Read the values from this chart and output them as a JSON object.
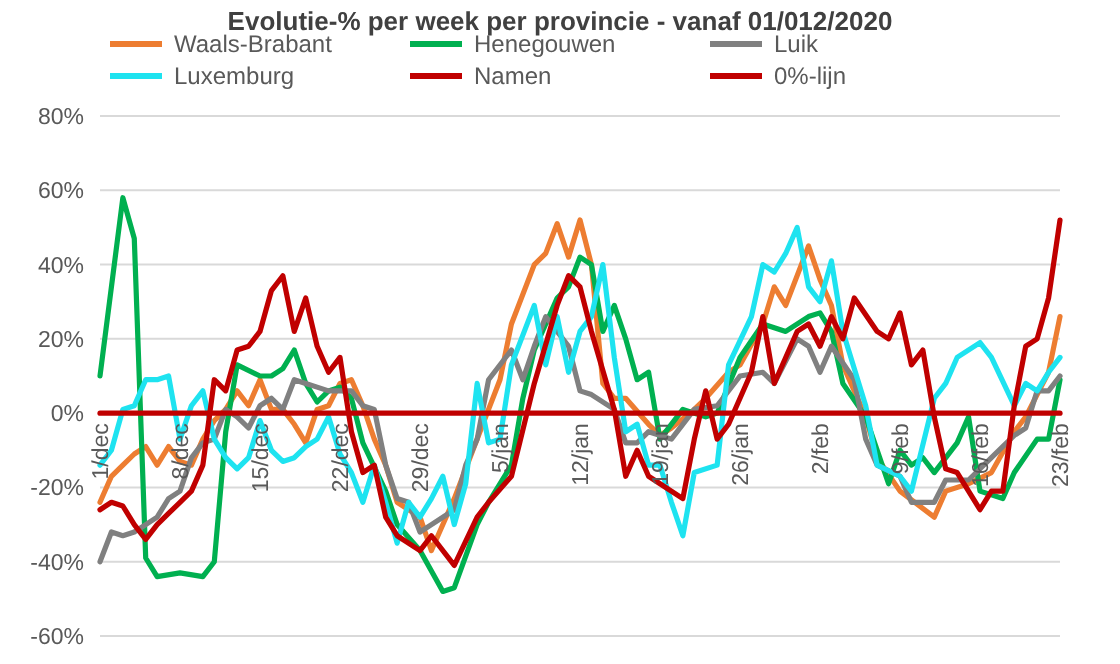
{
  "chart_data": {
    "type": "line",
    "title": "Evolutie-% per week per provincie - vanaf 01/012/2020",
    "xlim": [
      "2020-12-01",
      "2021-02-23"
    ],
    "xticks": [
      {
        "value": "2020-12-01",
        "label": "1/dec"
      },
      {
        "value": "2020-12-08",
        "label": "8/dec"
      },
      {
        "value": "2020-12-15",
        "label": "15/dec"
      },
      {
        "value": "2020-12-22",
        "label": "22/dec"
      },
      {
        "value": "2020-12-29",
        "label": "29/dec"
      },
      {
        "value": "2021-01-05",
        "label": "5/jan"
      },
      {
        "value": "2021-01-12",
        "label": "12/jan"
      },
      {
        "value": "2021-01-19",
        "label": "19/jan"
      },
      {
        "value": "2021-01-26",
        "label": "26/jan"
      },
      {
        "value": "2021-02-02",
        "label": "2/feb"
      },
      {
        "value": "2021-02-09",
        "label": "9/feb"
      },
      {
        "value": "2021-02-16",
        "label": "16/feb"
      },
      {
        "value": "2021-02-23",
        "label": "23/feb"
      }
    ],
    "ylim": [
      -60,
      80
    ],
    "yticks": [
      {
        "value": -60,
        "label": "-60%"
      },
      {
        "value": -40,
        "label": "-40%"
      },
      {
        "value": -20,
        "label": "-20%"
      },
      {
        "value": 0,
        "label": "0%"
      },
      {
        "value": 20,
        "label": "20%"
      },
      {
        "value": 40,
        "label": "40%"
      },
      {
        "value": 60,
        "label": "60%"
      },
      {
        "value": 80,
        "label": "80%"
      }
    ],
    "grid": "y",
    "legend": "top",
    "marker": "none",
    "line_style": "solid",
    "series": [
      {
        "name": "Waals-Brabant",
        "color": "#ed7d31",
        "x": [
          "2020-12-01",
          "2020-12-02",
          "2020-12-03",
          "2020-12-04",
          "2020-12-05",
          "2020-12-06",
          "2020-12-07",
          "2020-12-08",
          "2020-12-09",
          "2020-12-10",
          "2020-12-11",
          "2020-12-12",
          "2020-12-13",
          "2020-12-14",
          "2020-12-15",
          "2020-12-16",
          "2020-12-17",
          "2020-12-18",
          "2020-12-19",
          "2020-12-20",
          "2020-12-21",
          "2020-12-22",
          "2020-12-23",
          "2020-12-24",
          "2020-12-25",
          "2020-12-26",
          "2020-12-27",
          "2020-12-29",
          "2020-12-30",
          "2020-12-31",
          "2021-01-01",
          "2021-01-03",
          "2021-01-04",
          "2021-01-05",
          "2021-01-06",
          "2021-01-08",
          "2021-01-09",
          "2021-01-10",
          "2021-01-11",
          "2021-01-12",
          "2021-01-13",
          "2021-01-14",
          "2021-01-15",
          "2021-01-16",
          "2021-01-18",
          "2021-01-19",
          "2021-01-20",
          "2021-01-22",
          "2021-01-23",
          "2021-01-25",
          "2021-01-26",
          "2021-01-28",
          "2021-01-29",
          "2021-01-30",
          "2021-02-01",
          "2021-02-02",
          "2021-02-03",
          "2021-02-04",
          "2021-02-06",
          "2021-02-07",
          "2021-02-09",
          "2021-02-12",
          "2021-02-13",
          "2021-02-15",
          "2021-02-17",
          "2021-02-19",
          "2021-02-20",
          "2021-02-22",
          "2021-02-23"
        ],
        "values": [
          -24,
          -17,
          -14,
          -11,
          -9,
          -14,
          -9,
          -13,
          -14,
          -7,
          -2,
          1,
          6,
          2,
          9,
          1,
          1,
          -3,
          -8,
          1,
          2,
          8,
          9,
          2,
          -7,
          -14,
          -24,
          -28,
          -37,
          -30,
          -23,
          -7,
          1,
          9,
          24,
          40,
          43,
          51,
          42,
          52,
          40,
          8,
          4,
          4,
          -3,
          -6,
          -4,
          1,
          4,
          11,
          13,
          24,
          34,
          29,
          45,
          36,
          29,
          13,
          -1,
          -12,
          -21,
          -28,
          -21,
          -19,
          -16,
          -5,
          -1,
          11,
          26
        ]
      },
      {
        "name": "Henegouwen",
        "color": "#00b050",
        "x": [
          "2020-12-01",
          "2020-12-03",
          "2020-12-04",
          "2020-12-05",
          "2020-12-06",
          "2020-12-08",
          "2020-12-10",
          "2020-12-11",
          "2020-12-12",
          "2020-12-13",
          "2020-12-15",
          "2020-12-16",
          "2020-12-17",
          "2020-12-18",
          "2020-12-19",
          "2020-12-20",
          "2020-12-21",
          "2020-12-22",
          "2020-12-23",
          "2020-12-24",
          "2020-12-26",
          "2020-12-27",
          "2020-12-29",
          "2020-12-31",
          "2021-01-01",
          "2021-01-03",
          "2021-01-04",
          "2021-01-06",
          "2021-01-07",
          "2021-01-08",
          "2021-01-10",
          "2021-01-11",
          "2021-01-12",
          "2021-01-13",
          "2021-01-14",
          "2021-01-15",
          "2021-01-16",
          "2021-01-17",
          "2021-01-18",
          "2021-01-19",
          "2021-01-21",
          "2021-01-23",
          "2021-01-24",
          "2021-01-26",
          "2021-01-28",
          "2021-01-30",
          "2021-02-01",
          "2021-02-02",
          "2021-02-03",
          "2021-02-04",
          "2021-02-06",
          "2021-02-08",
          "2021-02-09",
          "2021-02-10",
          "2021-02-11",
          "2021-02-12",
          "2021-02-14",
          "2021-02-15",
          "2021-02-16",
          "2021-02-18",
          "2021-02-19",
          "2021-02-21",
          "2021-02-22",
          "2021-02-23"
        ],
        "values": [
          10,
          58,
          47,
          -39,
          -44,
          -43,
          -44,
          -40,
          -5,
          13,
          10,
          10,
          12,
          17,
          8,
          3,
          6,
          7,
          4,
          -8,
          -21,
          -30,
          -37,
          -48,
          -47,
          -30,
          -24,
          -14,
          4,
          17,
          31,
          34,
          42,
          40,
          22,
          29,
          20,
          9,
          11,
          -7,
          1,
          -1,
          0,
          15,
          24,
          22,
          26,
          27,
          22,
          8,
          -1,
          -19,
          -10,
          -14,
          -12,
          -16,
          -8,
          -1,
          -21,
          -23,
          -16,
          -7,
          -7,
          9
        ]
      },
      {
        "name": "Luik",
        "color": "#808080",
        "x": [
          "2020-12-01",
          "2020-12-02",
          "2020-12-03",
          "2020-12-04",
          "2020-12-05",
          "2020-12-06",
          "2020-12-07",
          "2020-12-08",
          "2020-12-09",
          "2020-12-10",
          "2020-12-11",
          "2020-12-12",
          "2020-12-13",
          "2020-12-14",
          "2020-12-15",
          "2020-12-16",
          "2020-12-17",
          "2020-12-18",
          "2020-12-19",
          "2020-12-20",
          "2020-12-21",
          "2020-12-22",
          "2020-12-23",
          "2020-12-24",
          "2020-12-25",
          "2020-12-26",
          "2020-12-27",
          "2020-12-28",
          "2020-12-29",
          "2020-12-30",
          "2021-01-01",
          "2021-01-02",
          "2021-01-03",
          "2021-01-04",
          "2021-01-06",
          "2021-01-07",
          "2021-01-08",
          "2021-01-09",
          "2021-01-11",
          "2021-01-12",
          "2021-01-13",
          "2021-01-15",
          "2021-01-16",
          "2021-01-17",
          "2021-01-18",
          "2021-01-20",
          "2021-01-22",
          "2021-01-24",
          "2021-01-26",
          "2021-01-28",
          "2021-01-29",
          "2021-01-31",
          "2021-02-01",
          "2021-02-02",
          "2021-02-03",
          "2021-02-05",
          "2021-02-06",
          "2021-02-07",
          "2021-02-09",
          "2021-02-10",
          "2021-02-12",
          "2021-02-13",
          "2021-02-15",
          "2021-02-17",
          "2021-02-19",
          "2021-02-20",
          "2021-02-21",
          "2021-02-22",
          "2021-02-23"
        ],
        "values": [
          -40,
          -32,
          -33,
          -32,
          -30,
          -28,
          -23,
          -21,
          -12,
          -8,
          -7,
          1,
          -1,
          -4,
          2,
          4,
          1,
          9,
          8,
          7,
          6,
          6,
          6,
          2,
          1,
          -14,
          -23,
          -24,
          -32,
          -30,
          -26,
          -14,
          -7,
          9,
          17,
          9,
          18,
          26,
          18,
          6,
          5,
          1,
          -8,
          -8,
          -5,
          -7,
          1,
          2,
          10,
          11,
          8,
          20,
          18,
          11,
          18,
          9,
          -7,
          -14,
          -17,
          -24,
          -24,
          -18,
          -18,
          -12,
          -6,
          -4,
          6,
          6,
          10
        ]
      },
      {
        "name": "Luxemburg",
        "color": "#1ee3f0",
        "x": [
          "2020-12-01",
          "2020-12-02",
          "2020-12-03",
          "2020-12-04",
          "2020-12-05",
          "2020-12-06",
          "2020-12-07",
          "2020-12-08",
          "2020-12-09",
          "2020-12-10",
          "2020-12-11",
          "2020-12-12",
          "2020-12-13",
          "2020-12-14",
          "2020-12-15",
          "2020-12-16",
          "2020-12-17",
          "2020-12-18",
          "2020-12-19",
          "2020-12-20",
          "2020-12-21",
          "2020-12-22",
          "2020-12-23",
          "2020-12-24",
          "2020-12-25",
          "2020-12-26",
          "2020-12-27",
          "2020-12-28",
          "2020-12-29",
          "2020-12-30",
          "2020-12-31",
          "2021-01-01",
          "2021-01-02",
          "2021-01-03",
          "2021-01-04",
          "2021-01-05",
          "2021-01-06",
          "2021-01-08",
          "2021-01-09",
          "2021-01-10",
          "2021-01-11",
          "2021-01-12",
          "2021-01-13",
          "2021-01-14",
          "2021-01-15",
          "2021-01-16",
          "2021-01-17",
          "2021-01-18",
          "2021-01-19",
          "2021-01-20",
          "2021-01-21",
          "2021-01-22",
          "2021-01-24",
          "2021-01-25",
          "2021-01-27",
          "2021-01-28",
          "2021-01-29",
          "2021-01-30",
          "2021-01-31",
          "2021-02-01",
          "2021-02-02",
          "2021-02-03",
          "2021-02-04",
          "2021-02-06",
          "2021-02-07",
          "2021-02-09",
          "2021-02-10",
          "2021-02-12",
          "2021-02-13",
          "2021-02-14",
          "2021-02-16",
          "2021-02-17",
          "2021-02-19",
          "2021-02-20",
          "2021-02-21",
          "2021-02-22",
          "2021-02-23"
        ],
        "values": [
          -14,
          -10,
          1,
          2,
          9,
          9,
          10,
          -7,
          2,
          6,
          -7,
          -12,
          -15,
          -12,
          -2,
          -10,
          -13,
          -12,
          -9,
          -7,
          -1,
          -11,
          -16,
          -24,
          -14,
          -24,
          -35,
          -24,
          -28,
          -23,
          -17,
          -30,
          -19,
          8,
          -8,
          -7,
          13,
          29,
          13,
          26,
          11,
          22,
          26,
          40,
          15,
          -5,
          -3,
          -14,
          -14,
          -24,
          -33,
          -16,
          -14,
          13,
          26,
          40,
          38,
          43,
          50,
          34,
          30,
          41,
          22,
          2,
          -14,
          -17,
          -21,
          4,
          8,
          15,
          19,
          15,
          2,
          8,
          6,
          11,
          15
        ]
      },
      {
        "name": "Namen",
        "color": "#c00000",
        "x": [
          "2020-12-01",
          "2020-12-02",
          "2020-12-03",
          "2020-12-04",
          "2020-12-05",
          "2020-12-06",
          "2020-12-07",
          "2020-12-08",
          "2020-12-09",
          "2020-12-10",
          "2020-12-11",
          "2020-12-12",
          "2020-12-13",
          "2020-12-14",
          "2020-12-15",
          "2020-12-16",
          "2020-12-17",
          "2020-12-18",
          "2020-12-19",
          "2020-12-20",
          "2020-12-21",
          "2020-12-22",
          "2020-12-23",
          "2020-12-24",
          "2020-12-25",
          "2020-12-26",
          "2020-12-27",
          "2020-12-29",
          "2020-12-30",
          "2021-01-01",
          "2021-01-03",
          "2021-01-04",
          "2021-01-06",
          "2021-01-08",
          "2021-01-10",
          "2021-01-11",
          "2021-01-12",
          "2021-01-13",
          "2021-01-15",
          "2021-01-16",
          "2021-01-17",
          "2021-01-18",
          "2021-01-19",
          "2021-01-21",
          "2021-01-22",
          "2021-01-23",
          "2021-01-24",
          "2021-01-25",
          "2021-01-27",
          "2021-01-28",
          "2021-01-29",
          "2021-01-31",
          "2021-02-01",
          "2021-02-02",
          "2021-02-03",
          "2021-02-04",
          "2021-02-05",
          "2021-02-07",
          "2021-02-08",
          "2021-02-09",
          "2021-02-10",
          "2021-02-11",
          "2021-02-12",
          "2021-02-13",
          "2021-02-14",
          "2021-02-16",
          "2021-02-17",
          "2021-02-18",
          "2021-02-19",
          "2021-02-20",
          "2021-02-21",
          "2021-02-22",
          "2021-02-23"
        ],
        "values": [
          -26,
          -24,
          -25,
          -30,
          -34,
          -30,
          -27,
          -24,
          -21,
          -14,
          9,
          6,
          17,
          18,
          22,
          33,
          37,
          22,
          31,
          18,
          11,
          15,
          -5,
          -16,
          -14,
          -28,
          -33,
          -37,
          -33,
          -41,
          -28,
          -24,
          -17,
          8,
          29,
          37,
          34,
          22,
          1,
          -17,
          -10,
          -17,
          -19,
          -23,
          -7,
          6,
          -7,
          -3,
          11,
          26,
          8,
          22,
          24,
          18,
          26,
          20,
          31,
          22,
          20,
          27,
          13,
          17,
          -1,
          -15,
          -16,
          -26,
          -21,
          -21,
          2,
          18,
          20,
          31,
          52
        ]
      },
      {
        "name": "0%-lijn",
        "color": "#c00000",
        "x": [
          "2020-12-01",
          "2021-02-23"
        ],
        "values": [
          0,
          0
        ]
      }
    ]
  }
}
